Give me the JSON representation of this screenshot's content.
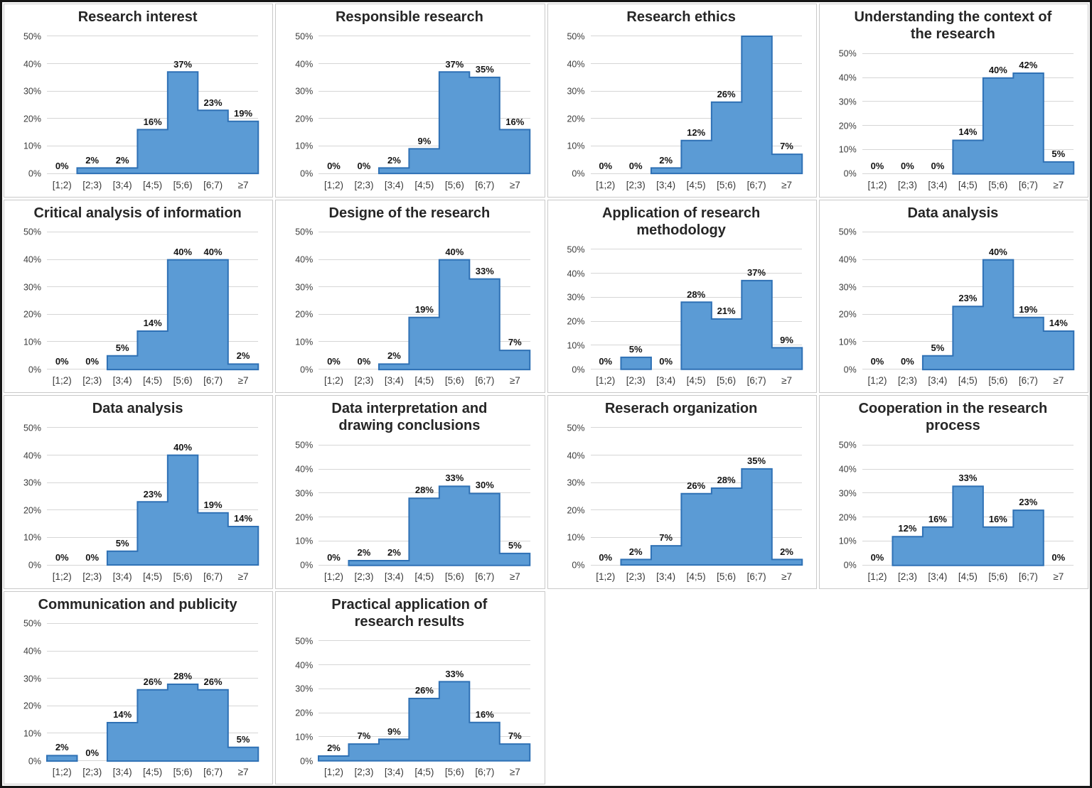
{
  "figure": {
    "description": "Grid of 14 histogram panels of self-assessment scores, shares of respondents per score bin",
    "y_axis_ticks": [
      "0%",
      "10%",
      "20%",
      "30%",
      "40%",
      "50%"
    ],
    "categories": [
      "[1;2)",
      "[2;3)",
      "[3;4)",
      "[4;5)",
      "[5;6)",
      "[6;7)",
      "≥7"
    ],
    "colors": {
      "bar_fill": "#5b9bd5",
      "bar_border": "#2f71b5",
      "gridline": "#d6d6d6",
      "tick_text": "#3d3d3d",
      "title_text": "#262626",
      "data_label_text": "#141414",
      "panel_border": "#c9c9c9",
      "frame_border": "#161616"
    }
  },
  "chart_data": [
    {
      "type": "bar",
      "title": "Research interest",
      "title_lines": [
        "Research interest"
      ],
      "categories": [
        "[1;2)",
        "[2;3)",
        "[3;4)",
        "[4;5)",
        "[5;6)",
        "[6;7)",
        "≥7"
      ],
      "values": [
        0,
        2,
        2,
        16,
        37,
        23,
        19
      ],
      "labels": [
        "0%",
        "2%",
        "2%",
        "16%",
        "37%",
        "23%",
        "19%"
      ],
      "ylim": [
        0,
        50
      ],
      "grid": true,
      "legend": "none"
    },
    {
      "type": "bar",
      "title": "Responsible research",
      "title_lines": [
        "Responsible research"
      ],
      "categories": [
        "[1;2)",
        "[2;3)",
        "[3;4)",
        "[4;5)",
        "[5;6)",
        "[6;7)",
        "≥7"
      ],
      "values": [
        0,
        0,
        2,
        9,
        37,
        35,
        16
      ],
      "labels": [
        "0%",
        "0%",
        "2%",
        "9%",
        "37%",
        "35%",
        "16%"
      ],
      "ylim": [
        0,
        50
      ],
      "grid": true,
      "legend": "none"
    },
    {
      "type": "bar",
      "title": "Research ethics",
      "title_lines": [
        "Research ethics"
      ],
      "categories": [
        "[1;2)",
        "[2;3)",
        "[3;4)",
        "[4;5)",
        "[5;6)",
        "[6;7)",
        "≥7"
      ],
      "values": [
        0,
        0,
        2,
        12,
        26,
        50,
        7
      ],
      "labels": [
        "0%",
        "0%",
        "2%",
        "12%",
        "26%",
        "",
        "7%"
      ],
      "ylim": [
        0,
        50
      ],
      "grid": true,
      "legend": "none"
    },
    {
      "type": "bar",
      "title": "Understanding the context of the research",
      "title_lines": [
        "Understanding the context of",
        "the research"
      ],
      "categories": [
        "[1;2)",
        "[2;3)",
        "[3;4)",
        "[4;5)",
        "[5;6)",
        "[6;7)",
        "≥7"
      ],
      "values": [
        0,
        0,
        0,
        14,
        40,
        42,
        5
      ],
      "labels": [
        "0%",
        "0%",
        "0%",
        "14%",
        "40%",
        "42%",
        "5%"
      ],
      "ylim": [
        0,
        50
      ],
      "grid": true,
      "legend": "none"
    },
    {
      "type": "bar",
      "title": "Critical analysis of information",
      "title_lines": [
        "Critical analysis of information"
      ],
      "categories": [
        "[1;2)",
        "[2;3)",
        "[3;4)",
        "[4;5)",
        "[5;6)",
        "[6;7)",
        "≥7"
      ],
      "values": [
        0,
        0,
        5,
        14,
        40,
        40,
        2
      ],
      "labels": [
        "0%",
        "0%",
        "5%",
        "14%",
        "40%",
        "40%",
        "2%"
      ],
      "ylim": [
        0,
        50
      ],
      "grid": true,
      "legend": "none"
    },
    {
      "type": "bar",
      "title": "Designe of the research",
      "title_lines": [
        "Designe of the research"
      ],
      "categories": [
        "[1;2)",
        "[2;3)",
        "[3;4)",
        "[4;5)",
        "[5;6)",
        "[6;7)",
        "≥7"
      ],
      "values": [
        0,
        0,
        2,
        19,
        40,
        33,
        7
      ],
      "labels": [
        "0%",
        "0%",
        "2%",
        "19%",
        "40%",
        "33%",
        "7%"
      ],
      "ylim": [
        0,
        50
      ],
      "grid": true,
      "legend": "none"
    },
    {
      "type": "bar",
      "title": "Application of research methodology",
      "title_lines": [
        "Application of research",
        "methodology"
      ],
      "categories": [
        "[1;2)",
        "[2;3)",
        "[3;4)",
        "[4;5)",
        "[5;6)",
        "[6;7)",
        "≥7"
      ],
      "values": [
        0,
        5,
        0,
        28,
        21,
        37,
        9
      ],
      "labels": [
        "0%",
        "5%",
        "0%",
        "28%",
        "21%",
        "37%",
        "9%"
      ],
      "ylim": [
        0,
        50
      ],
      "grid": true,
      "legend": "none"
    },
    {
      "type": "bar",
      "title": "Data analysis",
      "title_lines": [
        "Data analysis"
      ],
      "categories": [
        "[1;2)",
        "[2;3)",
        "[3;4)",
        "[4;5)",
        "[5;6)",
        "[6;7)",
        "≥7"
      ],
      "values": [
        0,
        0,
        5,
        23,
        40,
        19,
        14
      ],
      "labels": [
        "0%",
        "0%",
        "5%",
        "23%",
        "40%",
        "19%",
        "14%"
      ],
      "ylim": [
        0,
        50
      ],
      "grid": true,
      "legend": "none"
    },
    {
      "type": "bar",
      "title": "Data analysis",
      "title_lines": [
        "Data analysis"
      ],
      "categories": [
        "[1;2)",
        "[2;3)",
        "[3;4)",
        "[4;5)",
        "[5;6)",
        "[6;7)",
        "≥7"
      ],
      "values": [
        0,
        0,
        5,
        23,
        40,
        19,
        14
      ],
      "labels": [
        "0%",
        "0%",
        "5%",
        "23%",
        "40%",
        "19%",
        "14%"
      ],
      "ylim": [
        0,
        50
      ],
      "grid": true,
      "legend": "none"
    },
    {
      "type": "bar",
      "title": "Data interpretation and drawing conclusions",
      "title_lines": [
        "Data interpretation and",
        "drawing conclusions"
      ],
      "categories": [
        "[1;2)",
        "[2;3)",
        "[3;4)",
        "[4;5)",
        "[5;6)",
        "[6;7)",
        "≥7"
      ],
      "values": [
        0,
        2,
        2,
        28,
        33,
        30,
        5
      ],
      "labels": [
        "0%",
        "2%",
        "2%",
        "28%",
        "33%",
        "30%",
        "5%"
      ],
      "ylim": [
        0,
        50
      ],
      "grid": true,
      "legend": "none"
    },
    {
      "type": "bar",
      "title": "Reserach organization",
      "title_lines": [
        "Reserach organization"
      ],
      "categories": [
        "[1;2)",
        "[2;3)",
        "[3;4)",
        "[4;5)",
        "[5;6)",
        "[6;7)",
        "≥7"
      ],
      "values": [
        0,
        2,
        7,
        26,
        28,
        35,
        2
      ],
      "labels": [
        "0%",
        "2%",
        "7%",
        "26%",
        "28%",
        "35%",
        "2%"
      ],
      "ylim": [
        0,
        50
      ],
      "grid": true,
      "legend": "none"
    },
    {
      "type": "bar",
      "title": "Cooperation in the research process",
      "title_lines": [
        "Cooperation in the research",
        "process"
      ],
      "categories": [
        "[1;2)",
        "[2;3)",
        "[3;4)",
        "[4;5)",
        "[5;6)",
        "[6;7)",
        "≥7"
      ],
      "values": [
        0,
        12,
        16,
        33,
        16,
        23,
        0
      ],
      "labels": [
        "0%",
        "12%",
        "16%",
        "33%",
        "16%",
        "23%",
        "0%"
      ],
      "ylim": [
        0,
        50
      ],
      "grid": true,
      "legend": "none"
    },
    {
      "type": "bar",
      "title": "Communication and publicity",
      "title_lines": [
        "Communication and publicity"
      ],
      "categories": [
        "[1;2)",
        "[2;3)",
        "[3;4)",
        "[4;5)",
        "[5;6)",
        "[6;7)",
        "≥7"
      ],
      "values": [
        2,
        0,
        14,
        26,
        28,
        26,
        5
      ],
      "labels": [
        "2%",
        "0%",
        "14%",
        "26%",
        "28%",
        "26%",
        "5%"
      ],
      "ylim": [
        0,
        50
      ],
      "grid": true,
      "legend": "none"
    },
    {
      "type": "bar",
      "title": "Practical application of research results",
      "title_lines": [
        "Practical application of",
        "research results"
      ],
      "categories": [
        "[1;2)",
        "[2;3)",
        "[3;4)",
        "[4;5)",
        "[5;6)",
        "[6;7)",
        "≥7"
      ],
      "values": [
        2,
        7,
        9,
        26,
        33,
        16,
        7
      ],
      "labels": [
        "2%",
        "7%",
        "9%",
        "26%",
        "33%",
        "16%",
        "7%"
      ],
      "ylim": [
        0,
        50
      ],
      "grid": true,
      "legend": "none"
    }
  ]
}
